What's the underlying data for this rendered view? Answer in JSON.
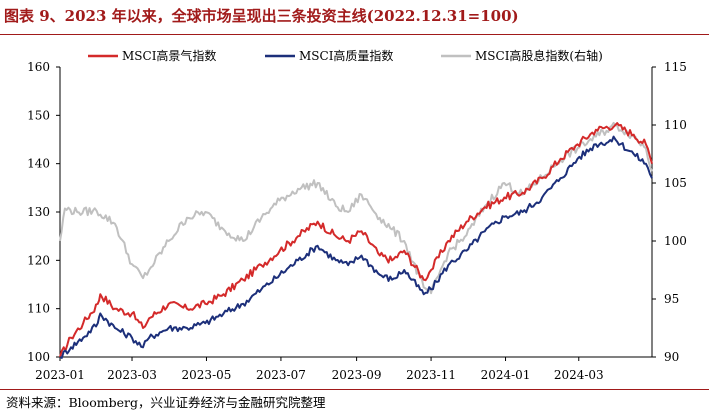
{
  "title": "图表 9、2023 年以来，全球市场呈现出三条投资主线(2022.12.31=100)",
  "source": "资料来源：Bloomberg，兴业证券经济与金融研究院整理",
  "chart_data": {
    "type": "line",
    "title": "图表 9、2023 年以来，全球市场呈现出三条投资主线(2022.12.31=100)",
    "x_ticks": [
      "2023-01",
      "2023-03",
      "2023-05",
      "2023-07",
      "2023-09",
      "2023-11",
      "2024-01",
      "2024-03"
    ],
    "y_left": {
      "ticks": [
        100,
        110,
        120,
        130,
        140,
        150,
        160
      ],
      "ylim": [
        100,
        160
      ]
    },
    "y_right": {
      "ticks": [
        90,
        95,
        100,
        105,
        110,
        115
      ],
      "ylim": [
        90,
        115
      ]
    },
    "legend_position": "top-center",
    "grid": false,
    "series": [
      {
        "name": "MSCI高景气指数",
        "axis": "left",
        "color": "#d42a2a",
        "points": [
          [
            "2023-01-01",
            100
          ],
          [
            "2023-01-10",
            104
          ],
          [
            "2023-01-20",
            107
          ],
          [
            "2023-02-01",
            111
          ],
          [
            "2023-02-03",
            113
          ],
          [
            "2023-02-15",
            110
          ],
          [
            "2023-03-01",
            109
          ],
          [
            "2023-03-10",
            106
          ],
          [
            "2023-03-15",
            108
          ],
          [
            "2023-03-31",
            111
          ],
          [
            "2023-04-15",
            110
          ],
          [
            "2023-04-30",
            111
          ],
          [
            "2023-05-15",
            113
          ],
          [
            "2023-05-31",
            116
          ],
          [
            "2023-06-15",
            119
          ],
          [
            "2023-06-30",
            122
          ],
          [
            "2023-07-15",
            125
          ],
          [
            "2023-07-31",
            128
          ],
          [
            "2023-08-15",
            125
          ],
          [
            "2023-08-25",
            124
          ],
          [
            "2023-09-05",
            126
          ],
          [
            "2023-09-20",
            121
          ],
          [
            "2023-09-30",
            120
          ],
          [
            "2023-10-10",
            122
          ],
          [
            "2023-10-26",
            116
          ],
          [
            "2023-11-01",
            118
          ],
          [
            "2023-11-15",
            124
          ],
          [
            "2023-11-30",
            128
          ],
          [
            "2023-12-15",
            131
          ],
          [
            "2023-12-31",
            133
          ],
          [
            "2024-01-15",
            134
          ],
          [
            "2024-01-31",
            137
          ],
          [
            "2024-02-15",
            141
          ],
          [
            "2024-02-29",
            144
          ],
          [
            "2024-03-15",
            147
          ],
          [
            "2024-03-31",
            148
          ],
          [
            "2024-04-15",
            146
          ],
          [
            "2024-04-25",
            144
          ],
          [
            "2024-04-30",
            140
          ]
        ]
      },
      {
        "name": "MSCI高质量指数",
        "axis": "left",
        "color": "#1c2f7a",
        "points": [
          [
            "2023-01-01",
            100
          ],
          [
            "2023-01-10",
            102
          ],
          [
            "2023-01-20",
            104
          ],
          [
            "2023-02-01",
            107
          ],
          [
            "2023-02-03",
            109
          ],
          [
            "2023-02-15",
            106
          ],
          [
            "2023-03-01",
            104
          ],
          [
            "2023-03-10",
            102
          ],
          [
            "2023-03-15",
            104
          ],
          [
            "2023-03-31",
            106
          ],
          [
            "2023-04-15",
            106
          ],
          [
            "2023-04-30",
            107
          ],
          [
            "2023-05-15",
            109
          ],
          [
            "2023-05-31",
            111
          ],
          [
            "2023-06-15",
            114
          ],
          [
            "2023-06-30",
            117
          ],
          [
            "2023-07-15",
            120
          ],
          [
            "2023-07-31",
            123
          ],
          [
            "2023-08-15",
            120
          ],
          [
            "2023-08-25",
            119
          ],
          [
            "2023-09-05",
            121
          ],
          [
            "2023-09-20",
            117
          ],
          [
            "2023-09-30",
            116
          ],
          [
            "2023-10-10",
            118
          ],
          [
            "2023-10-26",
            113
          ],
          [
            "2023-11-01",
            114
          ],
          [
            "2023-11-15",
            119
          ],
          [
            "2023-11-30",
            122
          ],
          [
            "2023-12-15",
            126
          ],
          [
            "2023-12-31",
            129
          ],
          [
            "2024-01-15",
            130
          ],
          [
            "2024-01-31",
            133
          ],
          [
            "2024-02-15",
            137
          ],
          [
            "2024-02-29",
            141
          ],
          [
            "2024-03-15",
            144
          ],
          [
            "2024-03-31",
            145
          ],
          [
            "2024-04-15",
            142
          ],
          [
            "2024-04-25",
            140
          ],
          [
            "2024-04-30",
            137
          ]
        ]
      },
      {
        "name": "MSCI高股息指数(右轴)",
        "axis": "right",
        "color": "#c0c0c0",
        "points": [
          [
            "2023-01-01",
            100
          ],
          [
            "2023-01-05",
            102.8
          ],
          [
            "2023-01-15",
            102.5
          ],
          [
            "2023-01-31",
            102.6
          ],
          [
            "2023-02-15",
            101.5
          ],
          [
            "2023-03-01",
            98
          ],
          [
            "2023-03-10",
            96.8
          ],
          [
            "2023-03-15",
            97.5
          ],
          [
            "2023-03-31",
            100
          ],
          [
            "2023-04-15",
            102
          ],
          [
            "2023-04-30",
            102.5
          ],
          [
            "2023-05-15",
            101
          ],
          [
            "2023-05-31",
            100
          ],
          [
            "2023-06-15",
            102
          ],
          [
            "2023-06-30",
            103.5
          ],
          [
            "2023-07-15",
            104.5
          ],
          [
            "2023-07-31",
            105
          ],
          [
            "2023-08-15",
            103
          ],
          [
            "2023-08-25",
            102.5
          ],
          [
            "2023-09-05",
            104
          ],
          [
            "2023-09-20",
            102
          ],
          [
            "2023-09-30",
            101
          ],
          [
            "2023-10-10",
            100
          ],
          [
            "2023-10-26",
            96
          ],
          [
            "2023-11-01",
            95.5
          ],
          [
            "2023-11-15",
            99
          ],
          [
            "2023-11-30",
            100.5
          ],
          [
            "2023-12-15",
            103
          ],
          [
            "2023-12-31",
            105
          ],
          [
            "2024-01-15",
            104
          ],
          [
            "2024-01-31",
            105.5
          ],
          [
            "2024-02-15",
            107
          ],
          [
            "2024-02-29",
            108
          ],
          [
            "2024-03-15",
            109
          ],
          [
            "2024-03-31",
            110
          ],
          [
            "2024-04-15",
            109
          ],
          [
            "2024-04-25",
            108
          ],
          [
            "2024-04-30",
            106
          ]
        ]
      }
    ]
  }
}
